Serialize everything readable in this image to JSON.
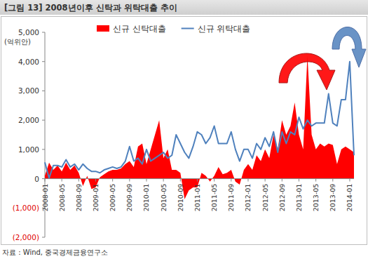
{
  "chart_data": {
    "type": "line",
    "title": "[그림 13] 2008년이후 신탁과 위탁대출 추이",
    "ylabel": "(억위안)",
    "source": "자료 : Wind, 중국경제금융연구소",
    "legend": "top",
    "grid": false,
    "categories": [
      "2008-01",
      null,
      null,
      null,
      "2008-05",
      null,
      null,
      null,
      "2008-09",
      null,
      null,
      null,
      "2009-01",
      null,
      null,
      null,
      "2009-05",
      null,
      null,
      null,
      "2009-09",
      null,
      null,
      null,
      "2010-01",
      null,
      null,
      null,
      "2010-05",
      null,
      null,
      null,
      "2010-09",
      null,
      null,
      null,
      "2011-01",
      null,
      null,
      null,
      "2011-05",
      null,
      null,
      null,
      "2011-09",
      null,
      null,
      null,
      "2012-01",
      null,
      null,
      null,
      "2012-05",
      null,
      null,
      null,
      "2012-09",
      null,
      null,
      null,
      "2013-01",
      null,
      null,
      null,
      "2013-05",
      null,
      null,
      null,
      "2013-09",
      null,
      null,
      null,
      "2014-01",
      null
    ],
    "series": [
      {
        "name": "신규 신탁대출",
        "type": "area",
        "color": "#ff0000",
        "values": [
          100,
          550,
          300,
          450,
          250,
          550,
          300,
          450,
          200,
          -250,
          100,
          -350,
          -300,
          50,
          150,
          250,
          300,
          300,
          350,
          500,
          600,
          400,
          1100,
          1200,
          500,
          1000,
          1500,
          2000,
          700,
          1000,
          300,
          300,
          200,
          -700,
          -400,
          -300,
          -300,
          200,
          100,
          -100,
          100,
          400,
          150,
          200,
          300,
          -100,
          -200,
          300,
          500,
          300,
          800,
          600,
          1000,
          700,
          1500,
          1000,
          2000,
          1500,
          1800,
          2600,
          1500,
          1000,
          4200,
          1500,
          1000,
          1200,
          1100,
          1200,
          1150,
          500,
          1000,
          1100,
          1000,
          900
        ]
      },
      {
        "name": "신규 위탁대출",
        "type": "line",
        "color": "#4f81bd",
        "values": [
          560,
          20,
          450,
          450,
          400,
          650,
          400,
          500,
          300,
          500,
          350,
          250,
          250,
          200,
          300,
          350,
          400,
          350,
          400,
          600,
          1100,
          600,
          700,
          500,
          1000,
          600,
          700,
          800,
          900,
          700,
          800,
          1500,
          1200,
          900,
          700,
          1100,
          1600,
          1500,
          1200,
          1400,
          1800,
          1200,
          1200,
          1200,
          1600,
          1000,
          600,
          1000,
          1000,
          700,
          1200,
          1000,
          1400,
          1100,
          1600,
          900,
          1600,
          1200,
          1600,
          1500,
          2100,
          1700,
          2000,
          1800,
          1900,
          1900,
          1900,
          2900,
          1900,
          1800,
          2700,
          2700,
          4000,
          800
        ]
      }
    ],
    "ylim": [
      -2000,
      5000
    ],
    "yticks": [
      {
        "value": -2000,
        "label": "(2,000)"
      },
      {
        "value": -1000,
        "label": "(1,000)"
      },
      0,
      {
        "value": 1000,
        "label": "1,000"
      },
      {
        "value": 2000,
        "label": "2,000"
      },
      {
        "value": 3000,
        "label": "3,000"
      },
      {
        "value": 4000,
        "label": "4,000"
      },
      {
        "value": 5000,
        "label": "5,000"
      }
    ]
  }
}
